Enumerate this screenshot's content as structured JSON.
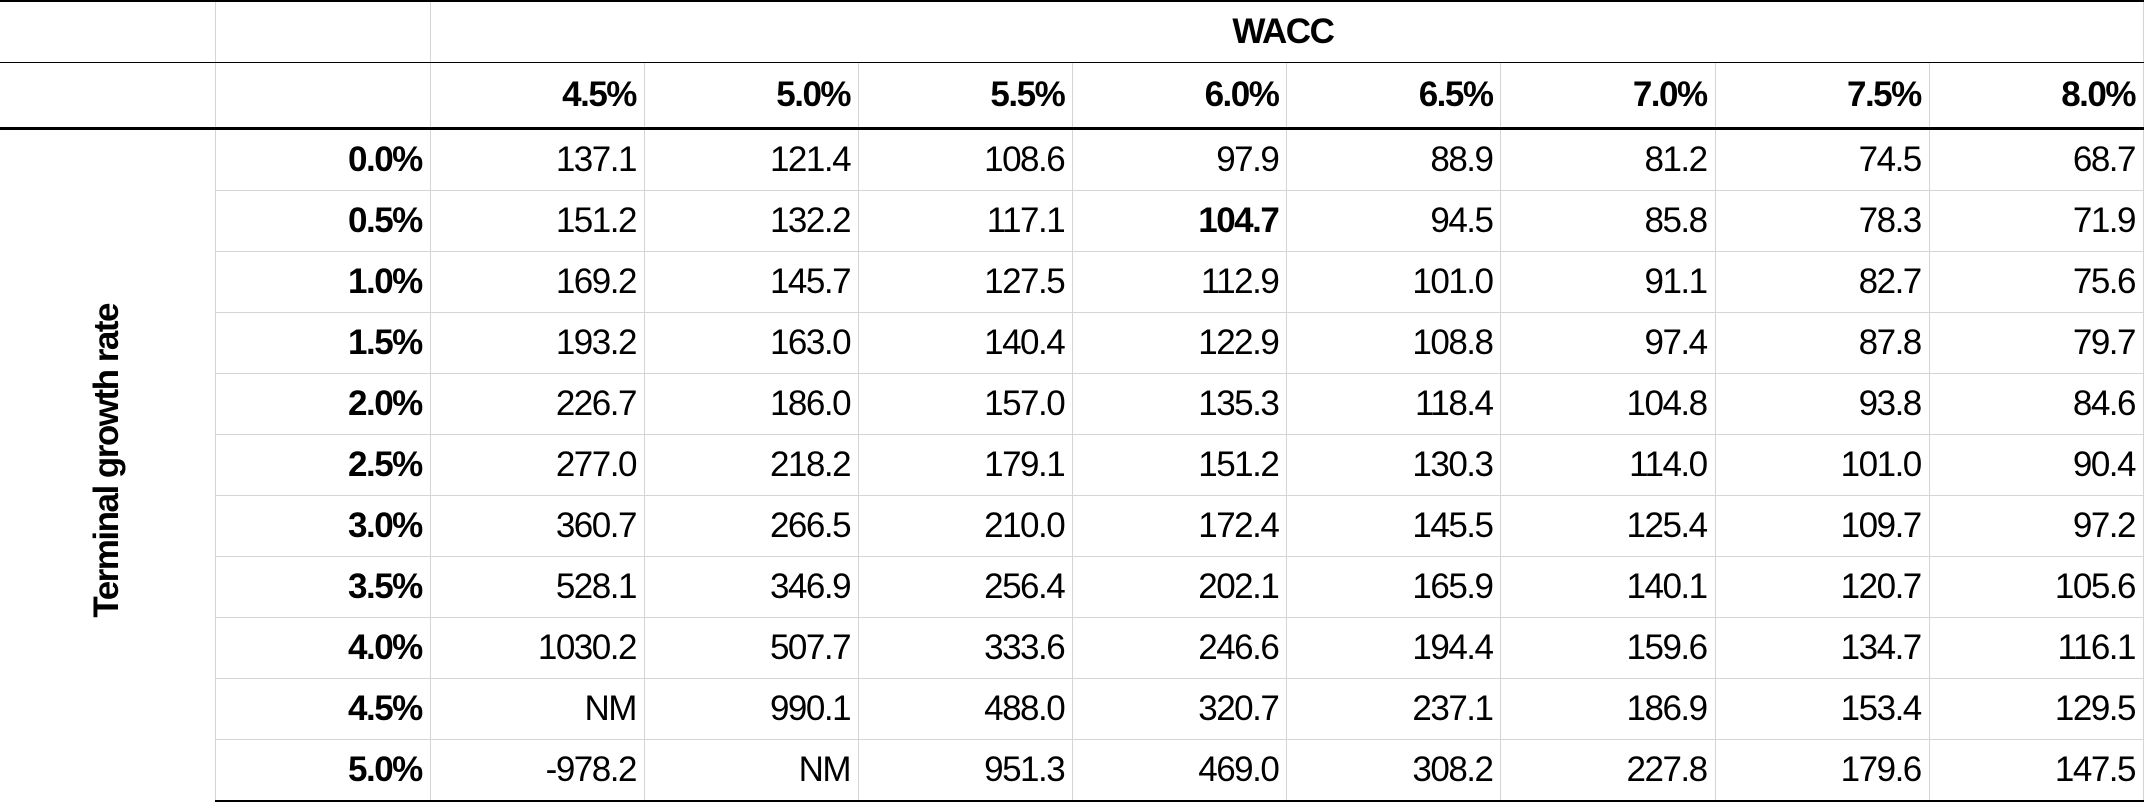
{
  "table": {
    "title": "WACC",
    "row_axis_label": "Terminal growth rate",
    "columns": [
      "4.5%",
      "5.0%",
      "5.5%",
      "6.0%",
      "6.5%",
      "7.0%",
      "7.5%",
      "8.0%"
    ],
    "rows": [
      {
        "label": "0.0%",
        "values": [
          "137.1",
          "121.4",
          "108.6",
          "97.9",
          "88.9",
          "81.2",
          "74.5",
          "68.7"
        ]
      },
      {
        "label": "0.5%",
        "values": [
          "151.2",
          "132.2",
          "117.1",
          "104.7",
          "94.5",
          "85.8",
          "78.3",
          "71.9"
        ]
      },
      {
        "label": "1.0%",
        "values": [
          "169.2",
          "145.7",
          "127.5",
          "112.9",
          "101.0",
          "91.1",
          "82.7",
          "75.6"
        ]
      },
      {
        "label": "1.5%",
        "values": [
          "193.2",
          "163.0",
          "140.4",
          "122.9",
          "108.8",
          "97.4",
          "87.8",
          "79.7"
        ]
      },
      {
        "label": "2.0%",
        "values": [
          "226.7",
          "186.0",
          "157.0",
          "135.3",
          "118.4",
          "104.8",
          "93.8",
          "84.6"
        ]
      },
      {
        "label": "2.5%",
        "values": [
          "277.0",
          "218.2",
          "179.1",
          "151.2",
          "130.3",
          "114.0",
          "101.0",
          "90.4"
        ]
      },
      {
        "label": "3.0%",
        "values": [
          "360.7",
          "266.5",
          "210.0",
          "172.4",
          "145.5",
          "125.4",
          "109.7",
          "97.2"
        ]
      },
      {
        "label": "3.5%",
        "values": [
          "528.1",
          "346.9",
          "256.4",
          "202.1",
          "165.9",
          "140.1",
          "120.7",
          "105.6"
        ]
      },
      {
        "label": "4.0%",
        "values": [
          "1030.2",
          "507.7",
          "333.6",
          "246.6",
          "194.4",
          "159.6",
          "134.7",
          "116.1"
        ]
      },
      {
        "label": "4.5%",
        "values": [
          "NM",
          "990.1",
          "488.0",
          "320.7",
          "237.1",
          "186.9",
          "153.4",
          "129.5"
        ]
      },
      {
        "label": "5.0%",
        "values": [
          "-978.2",
          "NM",
          "951.3",
          "469.0",
          "308.2",
          "227.8",
          "179.6",
          "147.5"
        ]
      }
    ]
  }
}
